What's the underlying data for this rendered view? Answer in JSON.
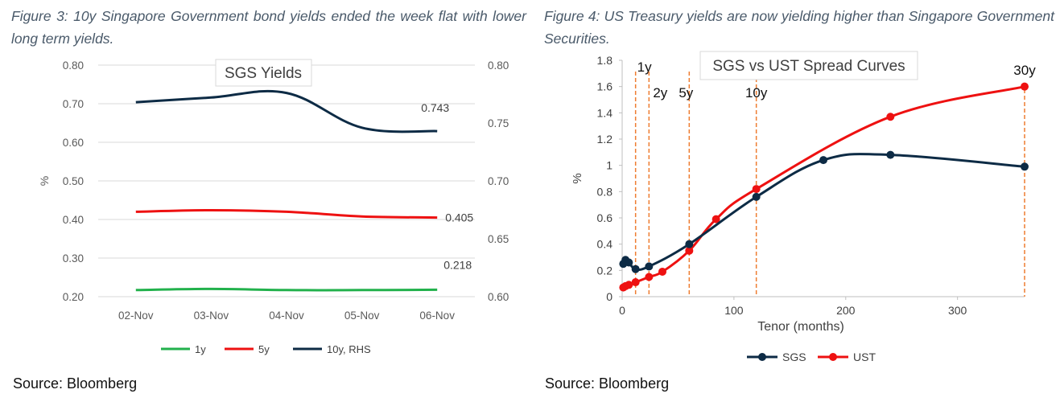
{
  "left_figure": {
    "caption": "Figure 3: 10y Singapore Government bond yields ended the week flat with lower long term yields.",
    "source": "Source: Bloomberg"
  },
  "right_figure": {
    "caption": "Figure 4: US Treasury yields are now yielding higher than Singapore Government Securities.",
    "source": "Source: Bloomberg"
  },
  "chart_data": [
    {
      "type": "line",
      "title": "SGS Yields",
      "categories": [
        "02-Nov",
        "03-Nov",
        "04-Nov",
        "05-Nov",
        "06-Nov"
      ],
      "ylabel": "%",
      "ylim": [
        0.2,
        0.8
      ],
      "y_ticks": [
        "0.20",
        "0.30",
        "0.40",
        "0.50",
        "0.60",
        "0.70",
        "0.80"
      ],
      "y2lim": [
        0.6,
        0.8
      ],
      "y2_ticks": [
        "0.60",
        "0.65",
        "0.70",
        "0.75",
        "0.80"
      ],
      "legend_position": "bottom",
      "series": [
        {
          "name": "1y",
          "color": "#22b14c",
          "axis": "left",
          "values": [
            0.217,
            0.22,
            0.217,
            0.217,
            0.218
          ],
          "end_label": "0.218"
        },
        {
          "name": "5y",
          "color": "#ee1111",
          "axis": "left",
          "values": [
            0.42,
            0.424,
            0.42,
            0.408,
            0.405
          ],
          "end_label": "0.405"
        },
        {
          "name": "10y, RHS",
          "color": "#0d2b45",
          "axis": "right",
          "values": [
            0.768,
            0.772,
            0.776,
            0.746,
            0.743
          ],
          "end_label": "0.743"
        }
      ]
    },
    {
      "type": "line",
      "title": "SGS vs UST Spread Curves",
      "xlabel": "Tenor (months)",
      "ylabel": "%",
      "xlim": [
        0,
        360
      ],
      "x_ticks": [
        "0",
        "100",
        "200",
        "300"
      ],
      "ylim": [
        0,
        1.8
      ],
      "y_ticks": [
        "0",
        "0.2",
        "0.4",
        "0.6",
        "0.8",
        "1",
        "1.2",
        "1.4",
        "1.6",
        "1.8"
      ],
      "legend_position": "bottom",
      "tenor_markers": [
        {
          "label": "1y",
          "x": 12
        },
        {
          "label": "2y",
          "x": 24
        },
        {
          "label": "5y",
          "x": 60
        },
        {
          "label": "10y",
          "x": 120
        },
        {
          "label": "30y",
          "x": 360
        }
      ],
      "series": [
        {
          "name": "SGS",
          "color": "#0d2b45",
          "x": [
            1,
            3,
            6,
            12,
            24,
            60,
            120,
            180,
            240,
            360
          ],
          "y": [
            0.25,
            0.28,
            0.26,
            0.21,
            0.23,
            0.4,
            0.76,
            1.04,
            1.08,
            0.99
          ]
        },
        {
          "name": "UST",
          "color": "#ee1111",
          "x": [
            1,
            3,
            6,
            12,
            24,
            36,
            60,
            84,
            120,
            240,
            360
          ],
          "y": [
            0.07,
            0.08,
            0.09,
            0.11,
            0.15,
            0.19,
            0.35,
            0.59,
            0.82,
            1.37,
            1.6
          ]
        }
      ]
    }
  ]
}
